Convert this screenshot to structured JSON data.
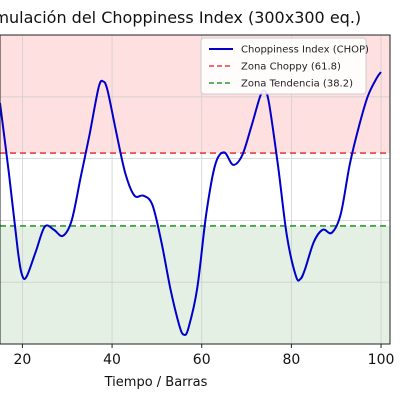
{
  "chart_data": {
    "type": "line",
    "title": "Simulación del Choppiness Index (300x300 eq.)",
    "xlabel": "Tiempo / Barras",
    "ylabel": "",
    "xlim": [
      15,
      102
    ],
    "ylim": [
      0,
      100
    ],
    "xticks": [
      20,
      40,
      60,
      80,
      100
    ],
    "grid": true,
    "legend_position": "top-right",
    "zones": [
      {
        "name": "choppy",
        "from": 61.8,
        "to": 100,
        "color": "#ffe0e0"
      },
      {
        "name": "trend",
        "from": 0,
        "to": 38.2,
        "color": "#e3f0e3"
      }
    ],
    "series": [
      {
        "name": "Choppiness Index (CHOP)",
        "color": "#0000cc",
        "x": [
          15,
          17,
          19,
          20,
          21,
          23,
          25,
          27,
          29,
          31,
          33,
          35,
          37,
          38,
          39,
          41,
          43,
          45,
          47,
          49,
          51,
          53,
          55,
          56,
          57,
          59,
          61,
          63,
          65,
          67,
          69,
          71,
          73,
          74,
          75,
          77,
          79,
          81,
          82,
          83,
          85,
          87,
          89,
          91,
          93,
          95,
          97,
          99,
          100
        ],
        "y": [
          78,
          55,
          30,
          22,
          22,
          30,
          38,
          37,
          35,
          40,
          54,
          68,
          83,
          85,
          82,
          68,
          55,
          48,
          48,
          45,
          33,
          18,
          6,
          3,
          5,
          18,
          42,
          58,
          62,
          58,
          61,
          70,
          80,
          82,
          78,
          58,
          35,
          22,
          21,
          24,
          33,
          37,
          36,
          42,
          58,
          70,
          80,
          86,
          88
        ]
      },
      {
        "name": "Zona Choppy (61.8)",
        "color": "#e84040",
        "dashed": true,
        "y": 61.8
      },
      {
        "name": "Zona Tendencia (38.2)",
        "color": "#2e9a2e",
        "dashed": true,
        "y": 38.2
      }
    ]
  }
}
